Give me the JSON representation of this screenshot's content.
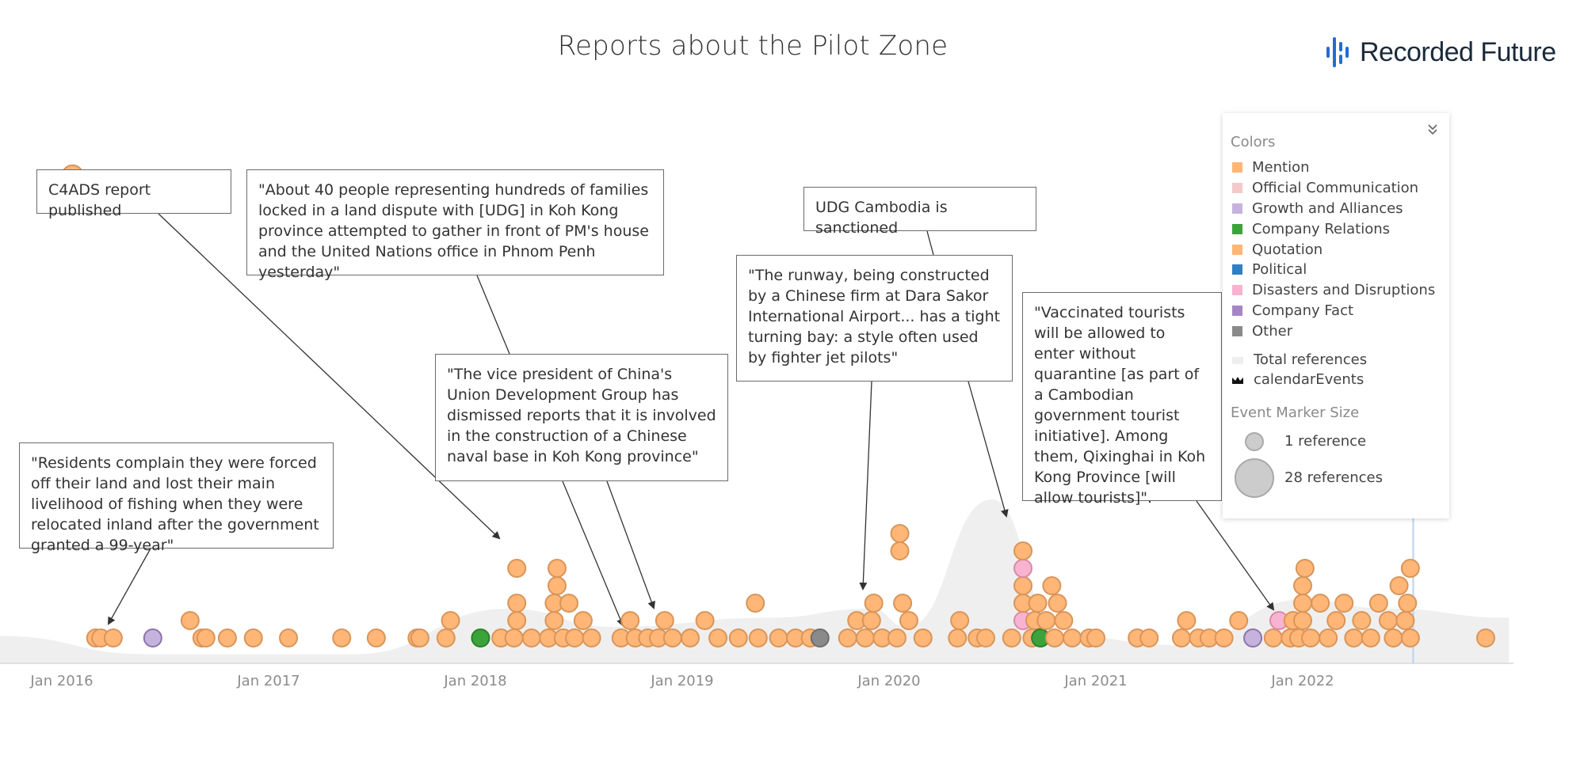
{
  "page": {
    "title": "Reports about the Pilot Zone",
    "logo_text": "Recorded Future"
  },
  "colors": {
    "Mention": "#ffb677",
    "Official Communication": "#f3c9c9",
    "Growth and Alliances": "#c5b3dd",
    "Company Relations": "#3aa43a",
    "Quotation": "#ffb677",
    "Political": "#2e7fc5",
    "Disasters and Disruptions": "#f7b3cf",
    "Company Fact": "#a585c6",
    "Other": "#8a8a8a",
    "marker_stroke": "#d9955a",
    "total_area": "#efefef"
  },
  "legend": {
    "colors_heading": "Colors",
    "items": [
      {
        "label": "Mention",
        "color": "#ffb677"
      },
      {
        "label": "Official Communication",
        "color": "#f3c9c9"
      },
      {
        "label": "Growth and Alliances",
        "color": "#c5b3dd"
      },
      {
        "label": "Company Relations",
        "color": "#3aa43a"
      },
      {
        "label": "Quotation",
        "color": "#ffb677"
      },
      {
        "label": "Political",
        "color": "#2e7fc5"
      },
      {
        "label": "Disasters and Disruptions",
        "color": "#f7b3cf"
      },
      {
        "label": "Company Fact",
        "color": "#a585c6"
      },
      {
        "label": "Other",
        "color": "#8a8a8a"
      }
    ],
    "series_items": [
      {
        "label": "Total references",
        "icon": "area-swatch-icon"
      },
      {
        "label": "calendarEvents",
        "icon": "calendar-events-icon"
      }
    ],
    "size_heading": "Event Marker Size",
    "sizes": [
      {
        "label": "1 reference",
        "refs": 1
      },
      {
        "label": "28 references",
        "refs": 28
      }
    ],
    "collapse_icon": "double-chevron-down-icon"
  },
  "annotations": [
    {
      "id": "c4ads",
      "text": "C4ADS report published",
      "date": "2018-03-15",
      "level": 3
    },
    {
      "id": "udg-land",
      "text": "\"About 40 people representing hundreds of families locked in a land dispute with [UDG] in Koh Kong province attempted to gather in front of PM's house and the United Nations office in Phnom Penh yesterday\"",
      "date": "2018-08-20",
      "level": 0
    },
    {
      "id": "residents",
      "text": "\"Residents complain they were forced off their land and lost their main livelihood of fishing when they were relocated inland after the government granted a 99-year\"",
      "date": "2016-03-01",
      "level": 0
    },
    {
      "id": "vice-pres",
      "text": "\"The vice president of China's Union Development Group has dismissed reports that it is involved in the construction of a Chinese naval base in Koh Kong province\"",
      "date": "2018-10-20",
      "level": 1
    },
    {
      "id": "udg-sanction",
      "text": "UDG Cambodia is sanctioned",
      "date": "2020-09-15",
      "level": 5
    },
    {
      "id": "runway",
      "text": "\"The runway, being constructed by a Chinese firm at Dara Sakor International Airport... has a tight turning bay: a style often used by fighter jet pilots\"",
      "date": "2019-11-15",
      "level": 1
    },
    {
      "id": "vaccinated",
      "text": "\"Vaccinated tourists will be allowed to enter without quarantine [as part of a Cambodian government tourist initiative]. Among them, Qixinghai in Koh Kong Province [will allow tourists]\".",
      "date": "2021-11-20",
      "level": 1
    }
  ],
  "chart_data": {
    "type": "scatter",
    "title": "Reports about the Pilot Zone",
    "x_axis": {
      "type": "date",
      "ticks": [
        "Jan 2016",
        "Jan 2017",
        "Jan 2018",
        "Jan 2019",
        "Jan 2020",
        "Jan 2021",
        "Jan 2022"
      ],
      "range": [
        "2015-09-01",
        "2022-12-31"
      ]
    },
    "current_date_marker": "2022-07-15",
    "total_references": [
      {
        "date": "2015-09-01",
        "refs": 3
      },
      {
        "date": "2016-06-01",
        "refs": 1
      },
      {
        "date": "2017-06-01",
        "refs": 1
      },
      {
        "date": "2018-03-01",
        "refs": 6
      },
      {
        "date": "2018-09-01",
        "refs": 4
      },
      {
        "date": "2019-06-01",
        "refs": 5
      },
      {
        "date": "2019-12-01",
        "refs": 6
      },
      {
        "date": "2020-02-01",
        "refs": 4
      },
      {
        "date": "2020-07-01",
        "refs": 18
      },
      {
        "date": "2020-11-01",
        "refs": 3
      },
      {
        "date": "2021-06-01",
        "refs": 2
      },
      {
        "date": "2022-01-01",
        "refs": 7
      },
      {
        "date": "2022-06-01",
        "refs": 6
      },
      {
        "date": "2022-12-31",
        "refs": 5
      }
    ],
    "events": [
      {
        "date": "2016-03-01",
        "level": 0,
        "type": "Mention",
        "refs": 1
      },
      {
        "date": "2016-03-10",
        "level": 0,
        "type": "Mention",
        "refs": 1
      },
      {
        "date": "2016-04-01",
        "level": 0,
        "type": "Mention",
        "refs": 1
      },
      {
        "date": "2016-06-10",
        "level": 0,
        "type": "Growth and Alliances",
        "refs": 1
      },
      {
        "date": "2016-08-15",
        "level": 1,
        "type": "Mention",
        "refs": 1
      },
      {
        "date": "2016-09-05",
        "level": 0,
        "type": "Mention",
        "refs": 1
      },
      {
        "date": "2016-09-12",
        "level": 0,
        "type": "Mention",
        "refs": 1
      },
      {
        "date": "2016-10-20",
        "level": 0,
        "type": "Mention",
        "refs": 1
      },
      {
        "date": "2016-12-05",
        "level": 0,
        "type": "Mention",
        "refs": 1
      },
      {
        "date": "2017-02-05",
        "level": 0,
        "type": "Mention",
        "refs": 1
      },
      {
        "date": "2017-05-10",
        "level": 0,
        "type": "Mention",
        "refs": 1
      },
      {
        "date": "2017-07-10",
        "level": 0,
        "type": "Mention",
        "refs": 1
      },
      {
        "date": "2017-09-20",
        "level": 0,
        "type": "Mention",
        "refs": 1
      },
      {
        "date": "2017-09-25",
        "level": 0,
        "type": "Mention",
        "refs": 1
      },
      {
        "date": "2017-11-10",
        "level": 0,
        "type": "Mention",
        "refs": 1
      },
      {
        "date": "2017-11-18",
        "level": 1,
        "type": "Mention",
        "refs": 1
      },
      {
        "date": "2018-01-10",
        "level": 0,
        "type": "Company Relations",
        "refs": 1
      },
      {
        "date": "2018-02-15",
        "level": 0,
        "type": "Mention",
        "refs": 1
      },
      {
        "date": "2018-03-10",
        "level": 0,
        "type": "Mention",
        "refs": 1
      },
      {
        "date": "2018-03-15",
        "level": 1,
        "type": "Mention",
        "refs": 1
      },
      {
        "date": "2018-03-15",
        "level": 2,
        "type": "Mention",
        "refs": 1
      },
      {
        "date": "2018-03-15",
        "level": 4,
        "type": "Mention",
        "refs": 1
      },
      {
        "date": "2018-04-10",
        "level": 0,
        "type": "Mention",
        "refs": 1
      },
      {
        "date": "2018-05-10",
        "level": 0,
        "type": "Mention",
        "refs": 1
      },
      {
        "date": "2018-05-20",
        "level": 1,
        "type": "Mention",
        "refs": 1
      },
      {
        "date": "2018-05-20",
        "level": 2,
        "type": "Mention",
        "refs": 1
      },
      {
        "date": "2018-05-25",
        "level": 3,
        "type": "Mention",
        "refs": 1
      },
      {
        "date": "2018-05-25",
        "level": 4,
        "type": "Mention",
        "refs": 1
      },
      {
        "date": "2018-06-05",
        "level": 0,
        "type": "Mention",
        "refs": 1
      },
      {
        "date": "2018-06-15",
        "level": 2,
        "type": "Mention",
        "refs": 1
      },
      {
        "date": "2018-06-25",
        "level": 0,
        "type": "Mention",
        "refs": 1
      },
      {
        "date": "2018-07-10",
        "level": 1,
        "type": "Mention",
        "refs": 1
      },
      {
        "date": "2018-07-25",
        "level": 0,
        "type": "Mention",
        "refs": 1
      },
      {
        "date": "2018-09-15",
        "level": 0,
        "type": "Mention",
        "refs": 1
      },
      {
        "date": "2018-10-01",
        "level": 1,
        "type": "Mention",
        "refs": 1
      },
      {
        "date": "2018-10-10",
        "level": 0,
        "type": "Mention",
        "refs": 1
      },
      {
        "date": "2018-11-01",
        "level": 0,
        "type": "Mention",
        "refs": 1
      },
      {
        "date": "2018-11-20",
        "level": 0,
        "type": "Mention",
        "refs": 1
      },
      {
        "date": "2018-12-01",
        "level": 1,
        "type": "Mention",
        "refs": 1
      },
      {
        "date": "2018-12-15",
        "level": 0,
        "type": "Mention",
        "refs": 1
      },
      {
        "date": "2019-01-15",
        "level": 0,
        "type": "Mention",
        "refs": 1
      },
      {
        "date": "2019-02-10",
        "level": 1,
        "type": "Mention",
        "refs": 1
      },
      {
        "date": "2019-03-05",
        "level": 0,
        "type": "Mention",
        "refs": 1
      },
      {
        "date": "2019-04-10",
        "level": 0,
        "type": "Mention",
        "refs": 1
      },
      {
        "date": "2019-05-10",
        "level": 2,
        "type": "Mention",
        "refs": 1
      },
      {
        "date": "2019-05-15",
        "level": 0,
        "type": "Mention",
        "refs": 1
      },
      {
        "date": "2019-06-20",
        "level": 0,
        "type": "Mention",
        "refs": 1
      },
      {
        "date": "2019-07-20",
        "level": 0,
        "type": "Mention",
        "refs": 1
      },
      {
        "date": "2019-08-15",
        "level": 0,
        "type": "Mention",
        "refs": 1
      },
      {
        "date": "2019-09-01",
        "level": 0,
        "type": "Other",
        "refs": 1
      },
      {
        "date": "2019-10-20",
        "level": 0,
        "type": "Mention",
        "refs": 1
      },
      {
        "date": "2019-11-05",
        "level": 1,
        "type": "Mention",
        "refs": 1
      },
      {
        "date": "2019-11-20",
        "level": 0,
        "type": "Mention",
        "refs": 1
      },
      {
        "date": "2019-12-01",
        "level": 1,
        "type": "Mention",
        "refs": 1
      },
      {
        "date": "2019-12-05",
        "level": 2,
        "type": "Mention",
        "refs": 1
      },
      {
        "date": "2019-12-20",
        "level": 0,
        "type": "Mention",
        "refs": 1
      },
      {
        "date": "2020-01-15",
        "level": 0,
        "type": "Mention",
        "refs": 1
      },
      {
        "date": "2020-01-25",
        "level": 2,
        "type": "Mention",
        "refs": 1
      },
      {
        "date": "2020-02-05",
        "level": 1,
        "type": "Mention",
        "refs": 1
      },
      {
        "date": "2020-01-20",
        "level": 5,
        "type": "Mention",
        "refs": 1
      },
      {
        "date": "2020-01-20",
        "level": 6,
        "type": "Mention",
        "refs": 1
      },
      {
        "date": "2020-03-01",
        "level": 0,
        "type": "Mention",
        "refs": 1
      },
      {
        "date": "2020-05-01",
        "level": 0,
        "type": "Mention",
        "refs": 1
      },
      {
        "date": "2020-05-05",
        "level": 1,
        "type": "Mention",
        "refs": 1
      },
      {
        "date": "2020-06-05",
        "level": 0,
        "type": "Mention",
        "refs": 1
      },
      {
        "date": "2020-06-20",
        "level": 0,
        "type": "Mention",
        "refs": 1
      },
      {
        "date": "2020-08-05",
        "level": 0,
        "type": "Mention",
        "refs": 1
      },
      {
        "date": "2020-08-25",
        "level": 1,
        "type": "Disasters and Disruptions",
        "refs": 1
      },
      {
        "date": "2020-08-25",
        "level": 2,
        "type": "Mention",
        "refs": 1
      },
      {
        "date": "2020-08-25",
        "level": 3,
        "type": "Mention",
        "refs": 1
      },
      {
        "date": "2020-08-25",
        "level": 4,
        "type": "Disasters and Disruptions",
        "refs": 1
      },
      {
        "date": "2020-08-25",
        "level": 5,
        "type": "Mention",
        "refs": 1
      },
      {
        "date": "2020-09-10",
        "level": 0,
        "type": "Mention",
        "refs": 1
      },
      {
        "date": "2020-09-15",
        "level": 1,
        "type": "Mention",
        "refs": 1
      },
      {
        "date": "2020-09-20",
        "level": 2,
        "type": "Mention",
        "refs": 1
      },
      {
        "date": "2020-09-25",
        "level": 0,
        "type": "Company Relations",
        "refs": 1
      },
      {
        "date": "2020-10-05",
        "level": 1,
        "type": "Mention",
        "refs": 1
      },
      {
        "date": "2020-10-15",
        "level": 3,
        "type": "Mention",
        "refs": 1
      },
      {
        "date": "2020-10-20",
        "level": 0,
        "type": "Mention",
        "refs": 1
      },
      {
        "date": "2020-10-25",
        "level": 2,
        "type": "Mention",
        "refs": 1
      },
      {
        "date": "2020-11-05",
        "level": 1,
        "type": "Mention",
        "refs": 1
      },
      {
        "date": "2020-11-20",
        "level": 0,
        "type": "Mention",
        "refs": 1
      },
      {
        "date": "2020-12-20",
        "level": 0,
        "type": "Mention",
        "refs": 1
      },
      {
        "date": "2021-01-01",
        "level": 0,
        "type": "Mention",
        "refs": 1
      },
      {
        "date": "2021-03-15",
        "level": 0,
        "type": "Mention",
        "refs": 1
      },
      {
        "date": "2021-04-05",
        "level": 0,
        "type": "Mention",
        "refs": 1
      },
      {
        "date": "2021-06-01",
        "level": 0,
        "type": "Mention",
        "refs": 1
      },
      {
        "date": "2021-06-10",
        "level": 1,
        "type": "Mention",
        "refs": 1
      },
      {
        "date": "2021-07-01",
        "level": 0,
        "type": "Mention",
        "refs": 1
      },
      {
        "date": "2021-07-20",
        "level": 0,
        "type": "Mention",
        "refs": 1
      },
      {
        "date": "2021-08-15",
        "level": 0,
        "type": "Mention",
        "refs": 1
      },
      {
        "date": "2021-09-10",
        "level": 1,
        "type": "Mention",
        "refs": 1
      },
      {
        "date": "2021-10-05",
        "level": 0,
        "type": "Growth and Alliances",
        "refs": 1
      },
      {
        "date": "2021-11-10",
        "level": 0,
        "type": "Mention",
        "refs": 1
      },
      {
        "date": "2021-11-20",
        "level": 1,
        "type": "Disasters and Disruptions",
        "refs": 1
      },
      {
        "date": "2021-12-10",
        "level": 0,
        "type": "Mention",
        "refs": 1
      },
      {
        "date": "2021-12-15",
        "level": 1,
        "type": "Mention",
        "refs": 1
      },
      {
        "date": "2021-12-25",
        "level": 0,
        "type": "Mention",
        "refs": 1
      },
      {
        "date": "2022-01-01",
        "level": 1,
        "type": "Mention",
        "refs": 1
      },
      {
        "date": "2022-01-01",
        "level": 2,
        "type": "Mention",
        "refs": 1
      },
      {
        "date": "2022-01-01",
        "level": 3,
        "type": "Mention",
        "refs": 1
      },
      {
        "date": "2022-01-05",
        "level": 4,
        "type": "Mention",
        "refs": 1
      },
      {
        "date": "2022-01-15",
        "level": 0,
        "type": "Mention",
        "refs": 1
      },
      {
        "date": "2022-02-01",
        "level": 2,
        "type": "Mention",
        "refs": 1
      },
      {
        "date": "2022-02-15",
        "level": 0,
        "type": "Mention",
        "refs": 1
      },
      {
        "date": "2022-03-01",
        "level": 1,
        "type": "Mention",
        "refs": 1
      },
      {
        "date": "2022-03-15",
        "level": 2,
        "type": "Mention",
        "refs": 1
      },
      {
        "date": "2022-04-01",
        "level": 0,
        "type": "Mention",
        "refs": 1
      },
      {
        "date": "2022-04-15",
        "level": 1,
        "type": "Mention",
        "refs": 1
      },
      {
        "date": "2022-05-01",
        "level": 0,
        "type": "Mention",
        "refs": 1
      },
      {
        "date": "2022-05-15",
        "level": 2,
        "type": "Mention",
        "refs": 1
      },
      {
        "date": "2022-06-01",
        "level": 1,
        "type": "Mention",
        "refs": 1
      },
      {
        "date": "2022-06-10",
        "level": 0,
        "type": "Mention",
        "refs": 1
      },
      {
        "date": "2022-06-20",
        "level": 3,
        "type": "Mention",
        "refs": 1
      },
      {
        "date": "2022-07-01",
        "level": 1,
        "type": "Mention",
        "refs": 1
      },
      {
        "date": "2022-07-05",
        "level": 2,
        "type": "Mention",
        "refs": 1
      },
      {
        "date": "2022-07-10",
        "level": 4,
        "type": "Mention",
        "refs": 1
      },
      {
        "date": "2022-07-10",
        "level": 0,
        "type": "Mention",
        "refs": 1
      },
      {
        "date": "2022-11-20",
        "level": 0,
        "type": "Mention",
        "refs": 1
      },
      {
        "date": "2016-01-20",
        "level": 7,
        "type": "Mention",
        "refs": 4
      }
    ]
  }
}
